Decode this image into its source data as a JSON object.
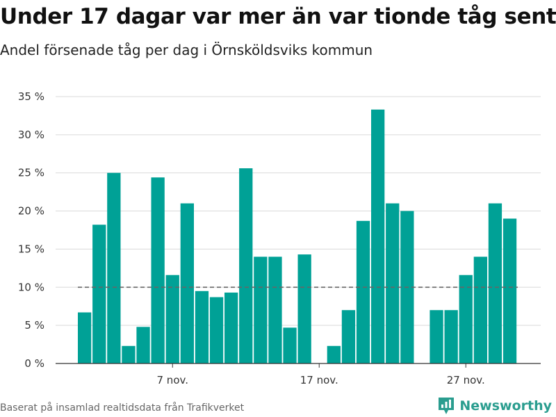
{
  "header": {
    "title": "Under 17 dagar var mer än var tionde tåg sent",
    "subtitle": "Andel försenade tåg per dag i Örnsköldsviks kommun"
  },
  "footer": {
    "source": "Baserat på insamlad realtidsdata från Trafikverket",
    "brand": "Newsworthy",
    "brand_icon": "newsworthy-logo-icon"
  },
  "colors": {
    "bar": "#00a196",
    "reference_line": "#666666",
    "grid": "#d9d9d9",
    "brand": "#2a9d8f"
  },
  "chart_data": {
    "type": "bar",
    "title": "Under 17 dagar var mer än var tionde tåg sent",
    "subtitle": "Andel försenade tåg per dag i Örnsköldsviks kommun",
    "xlabel": "",
    "ylabel": "",
    "x_unit": "day of November",
    "x": [
      1,
      2,
      3,
      4,
      5,
      6,
      7,
      8,
      9,
      10,
      11,
      12,
      13,
      14,
      15,
      16,
      17,
      18,
      19,
      20,
      21,
      22,
      23,
      24,
      25,
      26,
      27,
      28,
      29,
      30
    ],
    "values": [
      6.7,
      18.2,
      25.0,
      2.3,
      4.8,
      24.4,
      11.6,
      21.0,
      9.5,
      8.7,
      9.3,
      25.6,
      14.0,
      14.0,
      4.7,
      14.3,
      null,
      2.3,
      7.0,
      18.7,
      33.3,
      21.0,
      20.0,
      null,
      7.0,
      7.0,
      11.6,
      14.0,
      21.0,
      19.0
    ],
    "ylim": [
      0,
      35
    ],
    "yticks": [
      0,
      5,
      10,
      15,
      20,
      25,
      30,
      35
    ],
    "ytick_labels": [
      "0 %",
      "5 %",
      "10 %",
      "15 %",
      "20 %",
      "25 %",
      "30 %",
      "35 %"
    ],
    "xticks": [
      7,
      17,
      27
    ],
    "xtick_labels": [
      "7 nov.",
      "17 nov.",
      "27 nov."
    ],
    "reference_line": 10,
    "grid": true,
    "legend": "none"
  }
}
